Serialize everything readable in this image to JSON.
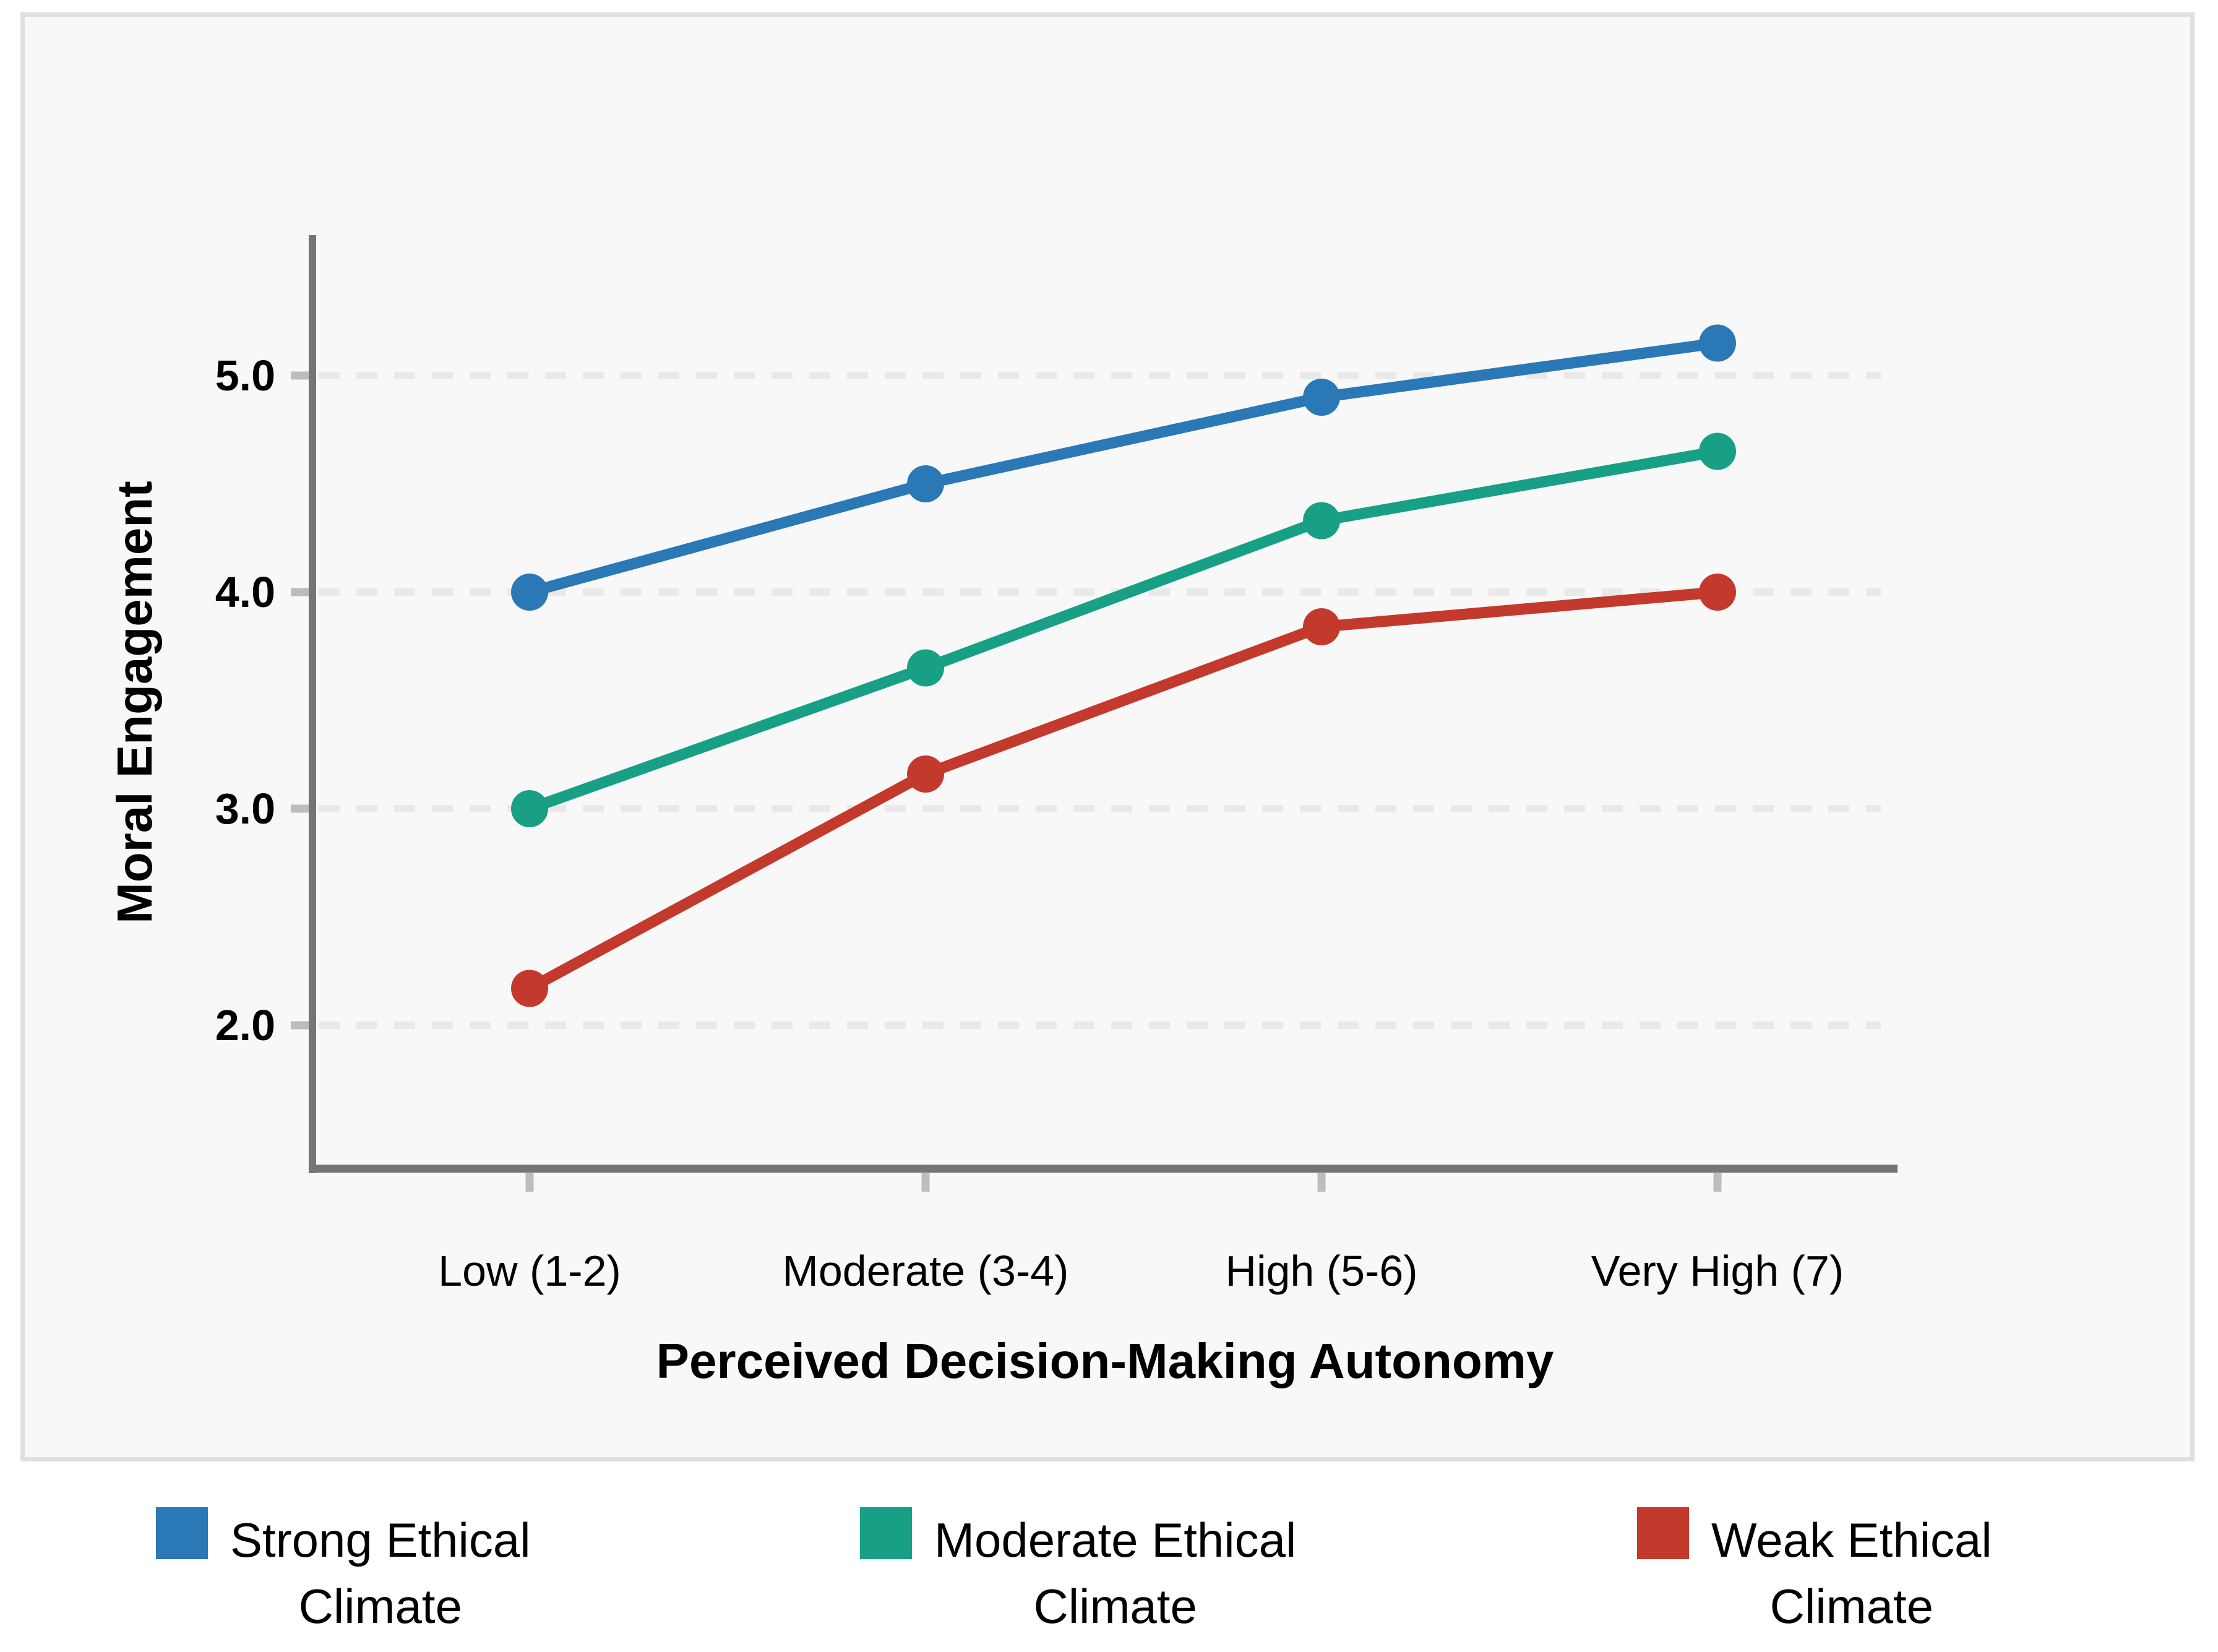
{
  "chart_data": {
    "type": "line",
    "title": "",
    "xlabel": "Perceived Decision-Making Autonomy",
    "ylabel": "Moral Engagement",
    "categories": [
      "Low (1-2)",
      "Moderate (3-4)",
      "High (5-6)",
      "Very High (7)"
    ],
    "series": [
      {
        "name": "Strong Ethical Climate",
        "label_lines": [
          "Strong Ethical",
          "Climate"
        ],
        "color": "#2b78b6",
        "values": [
          4.0,
          4.5,
          4.9,
          5.15
        ]
      },
      {
        "name": "Moderate Ethical Climate",
        "label_lines": [
          "Moderate Ethical",
          "Climate"
        ],
        "color": "#17a085",
        "values": [
          3.0,
          3.65,
          4.33,
          4.65
        ]
      },
      {
        "name": "Weak Ethical Climate",
        "label_lines": [
          "Weak Ethical",
          "Climate"
        ],
        "color": "#c33a2d",
        "values": [
          2.17,
          3.16,
          3.84,
          4.0
        ]
      }
    ],
    "yticks": [
      5.0,
      4.0,
      3.0,
      2.0
    ],
    "ytick_labels": [
      "5.0",
      "4.0",
      "3.0",
      "2.0"
    ],
    "ylim": [
      1.3,
      5.65
    ],
    "grid": "horizontal-dashed",
    "legend_position": "bottom",
    "colors": {
      "axis": "#757575",
      "tick": "#bdbdbd",
      "gridline": "#e9e9e9",
      "panel_background": "#f8f8f8",
      "panel_border": "#dfdfdf"
    }
  }
}
